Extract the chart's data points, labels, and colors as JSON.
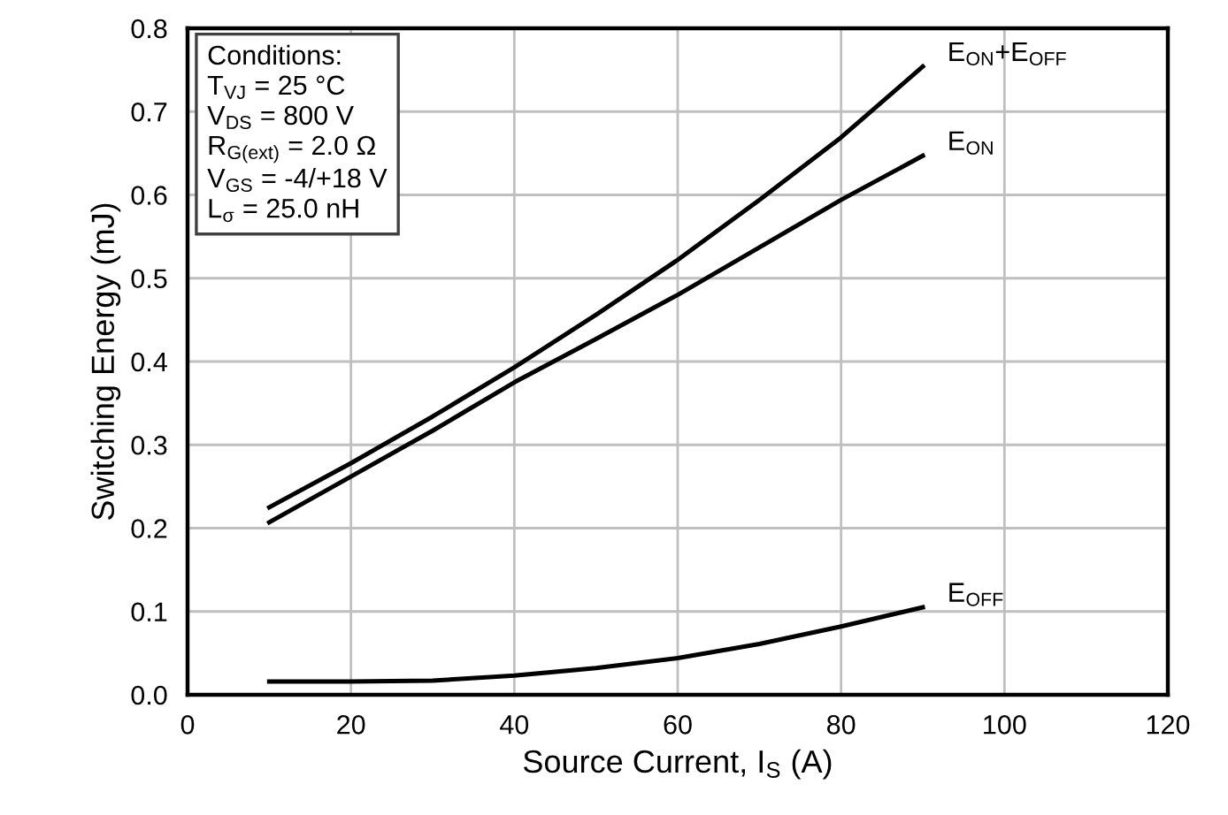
{
  "chart_data": {
    "type": "line",
    "xlabel": "Source Current, I$_{S}$ (A)",
    "ylabel": "Switching Energy (mJ)",
    "xlim": [
      0,
      120
    ],
    "xticks": [
      0,
      20,
      40,
      60,
      80,
      100,
      120
    ],
    "ylim": [
      0,
      0.8
    ],
    "yticks": [
      {
        "value": 0,
        "label": "0.0"
      },
      0.1,
      0.2,
      0.3,
      0.4,
      0.5,
      0.6,
      0.7,
      0.8
    ],
    "grid": true,
    "marker": "none",
    "line_style": "solid",
    "series": [
      {
        "name": "E$_{ON}$+E$_{OFF}$",
        "color": "#000000",
        "x": [
          10,
          20,
          30,
          40,
          50,
          60,
          70,
          80,
          90
        ],
        "values": [
          0.225,
          0.278,
          0.334,
          0.393,
          0.456,
          0.522,
          0.594,
          0.669,
          0.754
        ]
      },
      {
        "name": "E$_{ON}$",
        "color": "#000000",
        "x": [
          10,
          20,
          30,
          40,
          50,
          60,
          70,
          80,
          90
        ],
        "values": [
          0.207,
          0.262,
          0.317,
          0.375,
          0.427,
          0.48,
          0.537,
          0.594,
          0.647
        ]
      },
      {
        "name": "E$_{OFF}$",
        "color": "#000000",
        "x": [
          10,
          20,
          30,
          40,
          50,
          60,
          70,
          80,
          90
        ],
        "values": [
          0.016,
          0.016,
          0.017,
          0.023,
          0.032,
          0.044,
          0.061,
          0.082,
          0.105
        ]
      }
    ],
    "annotations": [
      "Conditions:\nT$_{VJ}$ = 25 °C\nV$_{DS}$ = 800 V\nR$_{G(ext)}$ = 2.0 Ω\nV$_{GS}$ = -4/+18 V\nL$_{σ}$ = 25.0 nH"
    ]
  }
}
